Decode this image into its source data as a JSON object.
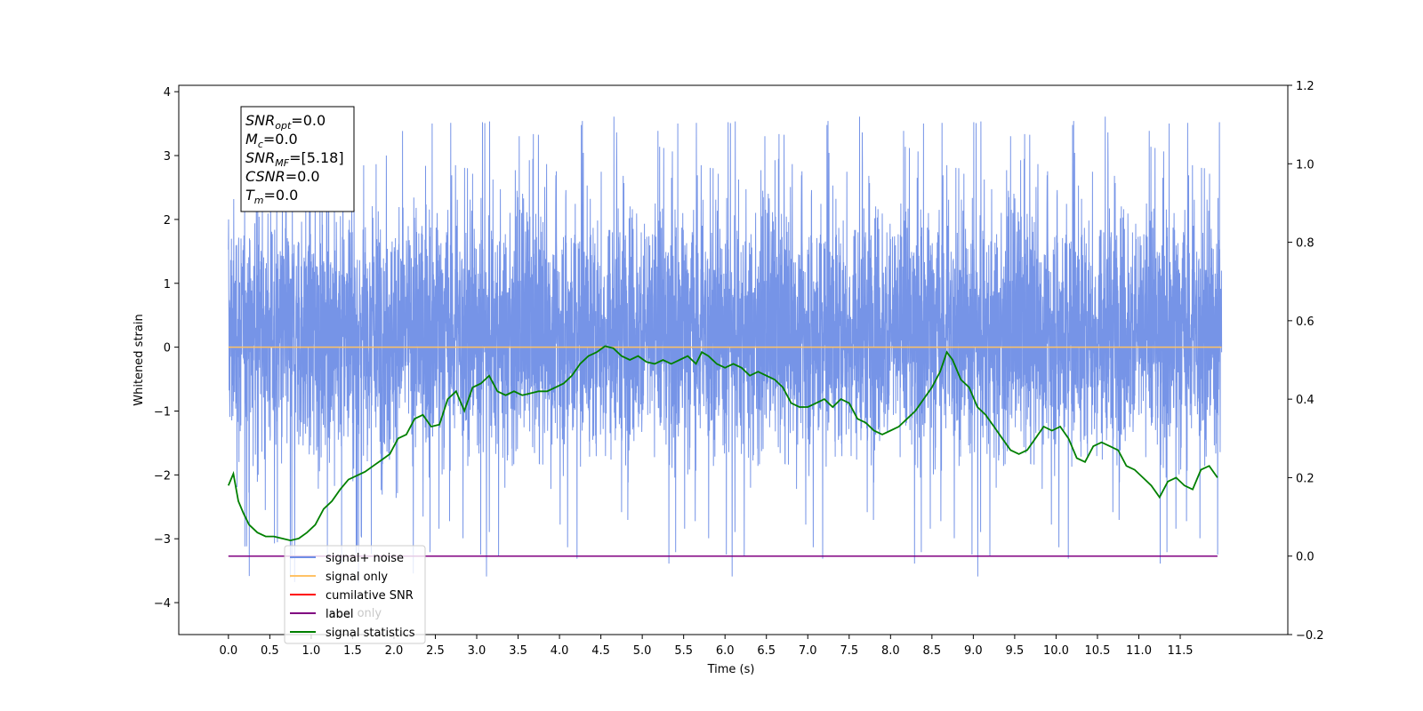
{
  "chart_data": {
    "type": "line",
    "xlabel": "Time (s)",
    "ylabel": "Whitened strain",
    "xlim": [
      -0.6,
      12.8
    ],
    "ylim": [
      -4.5,
      4.1
    ],
    "y2lim": [
      -0.2,
      1.2
    ],
    "x_ticks": [
      "0.0",
      "0.5",
      "1.0",
      "1.5",
      "2.0",
      "2.5",
      "3.0",
      "3.5",
      "4.0",
      "4.5",
      "5.0",
      "5.5",
      "6.0",
      "6.5",
      "7.0",
      "7.5",
      "8.0",
      "8.5",
      "9.0",
      "9.5",
      "10.0",
      "10.5",
      "11.0",
      "11.5"
    ],
    "y_ticks": [
      "4",
      "3",
      "2",
      "1",
      "0",
      "−1",
      "−2",
      "−3",
      "−4"
    ],
    "y2_ticks": [
      "1.2",
      "1.0",
      "0.8",
      "0.6",
      "0.4",
      "0.2",
      "0.0",
      "−0.2"
    ],
    "annotation": [
      {
        "base": "SNR",
        "sub": "opt",
        "value": "=0.0"
      },
      {
        "base": "M",
        "sub": "c",
        "value": "=0.0"
      },
      {
        "base": "SNR",
        "sub": "MF",
        "value": "=[5.18]"
      },
      {
        "base": "CSNR",
        "sub": "",
        "value": "=0.0"
      },
      {
        "base": "T",
        "sub": "m",
        "value": "=0.0"
      }
    ],
    "legend_position": "lower-left",
    "legend": [
      {
        "label": "signal+ noise",
        "color": "#6f8ee6"
      },
      {
        "label": "signal only",
        "color": "#ffc266"
      },
      {
        "label": "cumilative SNR",
        "color": "#ff0000"
      },
      {
        "label": "label",
        "color": "#800080"
      },
      {
        "label": "signal statistics",
        "color": "#008000"
      }
    ],
    "hidden_legend_text": "label only",
    "series": [
      {
        "name": "signal+ noise",
        "color": "#6f8ee6",
        "axis": "left",
        "x_range": [
          0.0,
          12.0
        ],
        "envelope_upper": 2.5,
        "envelope_lower": -2.5,
        "description": "dense whitened noise"
      },
      {
        "name": "signal only",
        "color": "#ffc266",
        "axis": "left",
        "x": [
          0.0,
          12.0
        ],
        "y": [
          0.0,
          0.0
        ]
      },
      {
        "name": "label",
        "color": "#800080",
        "axis": "right",
        "x": [
          0.0,
          11.95
        ],
        "y": [
          0.0,
          0.0
        ]
      },
      {
        "name": "signal statistics",
        "color": "#008000",
        "axis": "right",
        "x": [
          0.0,
          0.06,
          0.12,
          0.18,
          0.25,
          0.35,
          0.45,
          0.55,
          0.65,
          0.75,
          0.85,
          0.95,
          1.05,
          1.15,
          1.25,
          1.35,
          1.45,
          1.55,
          1.65,
          1.75,
          1.85,
          1.95,
          2.05,
          2.15,
          2.25,
          2.35,
          2.45,
          2.55,
          2.65,
          2.75,
          2.85,
          2.95,
          3.05,
          3.15,
          3.25,
          3.35,
          3.45,
          3.55,
          3.65,
          3.75,
          3.85,
          3.95,
          4.05,
          4.15,
          4.25,
          4.35,
          4.45,
          4.55,
          4.65,
          4.75,
          4.85,
          4.95,
          5.05,
          5.15,
          5.25,
          5.35,
          5.45,
          5.55,
          5.65,
          5.72,
          5.8,
          5.9,
          6.0,
          6.1,
          6.2,
          6.3,
          6.4,
          6.5,
          6.6,
          6.7,
          6.8,
          6.9,
          7.0,
          7.1,
          7.2,
          7.3,
          7.4,
          7.5,
          7.6,
          7.7,
          7.8,
          7.9,
          8.0,
          8.1,
          8.2,
          8.3,
          8.4,
          8.5,
          8.6,
          8.68,
          8.75,
          8.85,
          8.95,
          9.05,
          9.15,
          9.25,
          9.35,
          9.45,
          9.55,
          9.65,
          9.75,
          9.85,
          9.95,
          10.05,
          10.15,
          10.25,
          10.35,
          10.45,
          10.55,
          10.65,
          10.75,
          10.85,
          10.95,
          11.05,
          11.15,
          11.25,
          11.35,
          11.45,
          11.55,
          11.65,
          11.75,
          11.85,
          11.95
        ],
        "y": [
          0.18,
          0.21,
          0.14,
          0.11,
          0.08,
          0.06,
          0.05,
          0.05,
          0.045,
          0.04,
          0.045,
          0.06,
          0.08,
          0.12,
          0.14,
          0.17,
          0.195,
          0.205,
          0.215,
          0.23,
          0.245,
          0.26,
          0.3,
          0.31,
          0.35,
          0.36,
          0.33,
          0.335,
          0.4,
          0.42,
          0.37,
          0.43,
          0.44,
          0.46,
          0.42,
          0.41,
          0.42,
          0.41,
          0.415,
          0.42,
          0.42,
          0.43,
          0.44,
          0.46,
          0.49,
          0.51,
          0.52,
          0.535,
          0.53,
          0.51,
          0.5,
          0.51,
          0.495,
          0.49,
          0.5,
          0.49,
          0.5,
          0.51,
          0.49,
          0.52,
          0.51,
          0.49,
          0.48,
          0.49,
          0.48,
          0.46,
          0.47,
          0.46,
          0.45,
          0.43,
          0.39,
          0.38,
          0.38,
          0.39,
          0.4,
          0.38,
          0.4,
          0.39,
          0.35,
          0.34,
          0.32,
          0.31,
          0.32,
          0.33,
          0.35,
          0.37,
          0.4,
          0.43,
          0.47,
          0.52,
          0.5,
          0.45,
          0.43,
          0.38,
          0.36,
          0.33,
          0.3,
          0.27,
          0.26,
          0.27,
          0.3,
          0.33,
          0.32,
          0.33,
          0.3,
          0.25,
          0.24,
          0.28,
          0.29,
          0.28,
          0.27,
          0.23,
          0.22,
          0.2,
          0.18,
          0.15,
          0.19,
          0.2,
          0.18,
          0.17,
          0.22,
          0.23,
          0.2
        ]
      }
    ]
  }
}
